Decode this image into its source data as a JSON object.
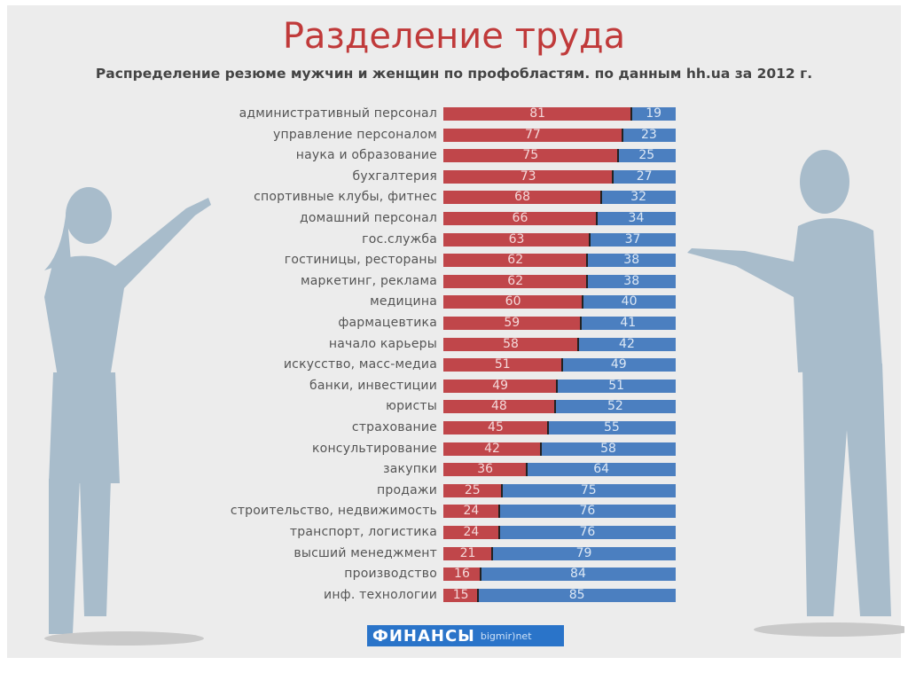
{
  "chart_data": {
    "type": "bar",
    "stacked": true,
    "orientation": "horizontal",
    "title": "Разделение труда",
    "subtitle": "Распределение резюме мужчин и женщин по профобластям. по данным hh.ua за 2012 г.",
    "xlim": [
      0,
      100
    ],
    "categories": [
      "административный персонал",
      "управление персоналом",
      "наука и образование",
      "бухгалтерия",
      "спортивные клубы, фитнес",
      "домашний персонал",
      "гос.служба",
      "гостиницы, рестораны",
      "маркетинг, реклама",
      "медицина",
      "фармацевтика",
      "начало карьеры",
      "искусство, масс-медиа",
      "банки, инвестиции",
      "юристы",
      "страхование",
      "консультирование",
      "закупки",
      "продажи",
      "строительство, недвижимость",
      "транспорт, логистика",
      "высший менеджмент",
      "производство",
      "инф. технологии"
    ],
    "series": [
      {
        "name": "red",
        "color": "#c0464a",
        "values": [
          81,
          77,
          75,
          73,
          68,
          66,
          63,
          62,
          62,
          60,
          59,
          58,
          51,
          49,
          48,
          45,
          42,
          36,
          25,
          24,
          24,
          21,
          16,
          15
        ]
      },
      {
        "name": "blue",
        "color": "#4b7fc0",
        "values": [
          19,
          23,
          25,
          27,
          32,
          34,
          37,
          38,
          38,
          40,
          41,
          42,
          49,
          51,
          52,
          55,
          58,
          64,
          75,
          76,
          76,
          79,
          84,
          85
        ]
      }
    ]
  },
  "logo": {
    "main": "ФИНАНСЫ",
    "sub": "bigmir)net"
  }
}
